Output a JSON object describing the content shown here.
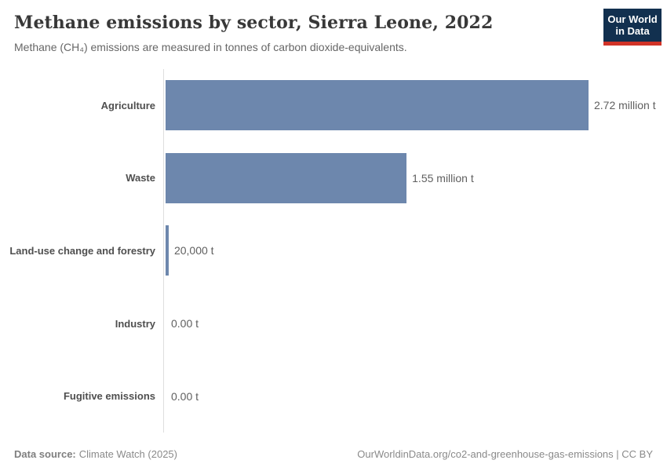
{
  "header": {
    "title": "Methane emissions by sector, Sierra Leone, 2022",
    "subtitle": "Methane (CH₄) emissions are measured in tonnes of carbon dioxide-equivalents.",
    "logo": {
      "line1": "Our World",
      "line2": "in Data",
      "bg_color": "#12304f",
      "accent_color": "#d13327"
    }
  },
  "chart_data": {
    "type": "bar",
    "orientation": "horizontal",
    "title": "Methane emissions by sector, Sierra Leone, 2022",
    "subtitle": "Methane (CH₄) emissions are measured in tonnes of carbon dioxide-equivalents.",
    "categories": [
      "Agriculture",
      "Waste",
      "Land-use change and forestry",
      "Industry",
      "Fugitive emissions"
    ],
    "values": [
      2720000,
      1550000,
      20000,
      0,
      0
    ],
    "value_labels": [
      "2.72 million t",
      "1.55 million t",
      "20,000 t",
      "0.00 t",
      "0.00 t"
    ],
    "xlabel": "",
    "ylabel": "",
    "xlim": [
      0,
      2720000
    ],
    "grid": false,
    "legend": "none",
    "bar_color": "#6d87ad"
  },
  "footer": {
    "source_label": "Data source:",
    "source_value": "Climate Watch (2025)",
    "attribution": "OurWorldinData.org/co2-and-greenhouse-gas-emissions | CC BY"
  }
}
